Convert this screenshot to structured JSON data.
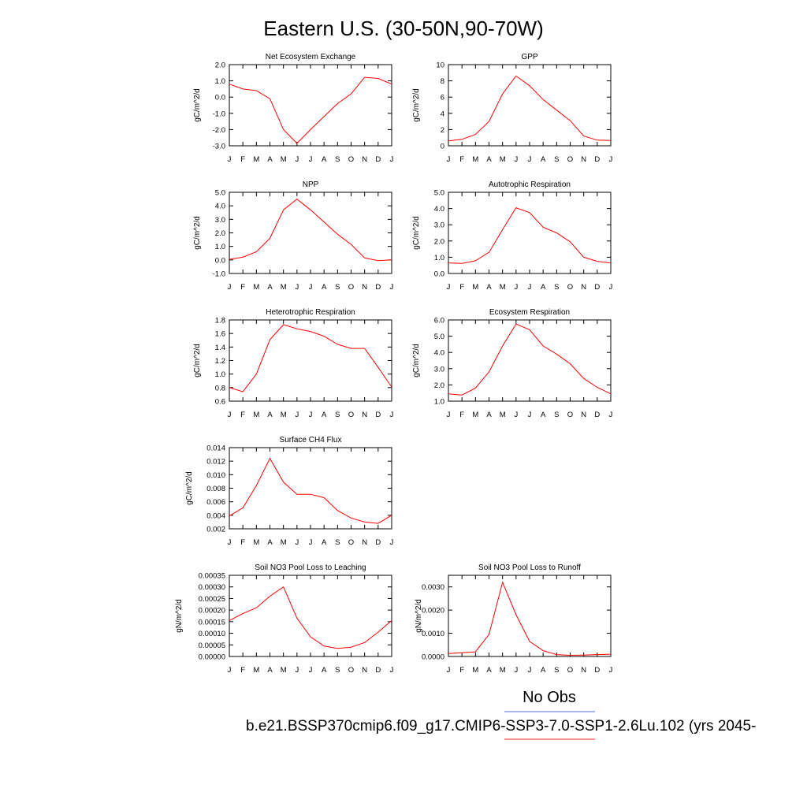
{
  "page_title": "Eastern U.S. (30-50N,90-70W)",
  "legend": {
    "obs_label": "No Obs",
    "obs_color": "#7b86e8",
    "model_label": "b.e21.BSSP370cmip6.f09_g17.CMIP6-SSP3-7.0-SSP1-2.6Lu.102 (yrs 2045-",
    "model_color": "#ff4d4d"
  },
  "line_color": "#ff0000",
  "chart_data": [
    {
      "type": "line",
      "title": "Net Ecosystem Exchange",
      "ylabel": "gC/m^2/d",
      "xlabel": "",
      "x": [
        "J",
        "F",
        "M",
        "A",
        "M",
        "J",
        "J",
        "A",
        "S",
        "O",
        "N",
        "D",
        "J"
      ],
      "ylim": [
        -3.0,
        2.0
      ],
      "yticks": [
        -3.0,
        -2.0,
        -1.0,
        0.0,
        1.0,
        2.0
      ],
      "ytick_labels": [
        "-3.0",
        "-2.0",
        "-1.0",
        "0.0",
        "1.0",
        "2.0"
      ],
      "series": [
        {
          "values": [
            0.8,
            0.5,
            0.4,
            -0.1,
            -2.0,
            -2.85,
            -2.0,
            -1.2,
            -0.4,
            0.2,
            1.22,
            1.15,
            0.8
          ]
        }
      ]
    },
    {
      "type": "line",
      "title": "GPP",
      "ylabel": "gC/m^2/d",
      "xlabel": "",
      "x": [
        "J",
        "F",
        "M",
        "A",
        "M",
        "J",
        "J",
        "A",
        "S",
        "O",
        "N",
        "D",
        "J"
      ],
      "ylim": [
        0,
        10
      ],
      "yticks": [
        0,
        2,
        4,
        6,
        8,
        10
      ],
      "ytick_labels": [
        "0",
        "2",
        "4",
        "6",
        "8",
        "10"
      ],
      "series": [
        {
          "values": [
            0.6,
            0.8,
            1.4,
            3.0,
            6.4,
            8.6,
            7.4,
            5.7,
            4.4,
            3.1,
            1.2,
            0.7,
            0.65
          ]
        }
      ]
    },
    {
      "type": "line",
      "title": "NPP",
      "ylabel": "gC/m^2/d",
      "xlabel": "",
      "x": [
        "J",
        "F",
        "M",
        "A",
        "M",
        "J",
        "J",
        "A",
        "S",
        "O",
        "N",
        "D",
        "J"
      ],
      "ylim": [
        -1.0,
        5.0
      ],
      "yticks": [
        -1.0,
        0.0,
        1.0,
        2.0,
        3.0,
        4.0,
        5.0
      ],
      "ytick_labels": [
        "-1.0",
        "0.0",
        "1.0",
        "2.0",
        "3.0",
        "4.0",
        "5.0"
      ],
      "series": [
        {
          "values": [
            0.05,
            0.2,
            0.6,
            1.6,
            3.7,
            4.5,
            3.7,
            2.8,
            1.9,
            1.15,
            0.15,
            -0.05,
            0.0
          ]
        }
      ]
    },
    {
      "type": "line",
      "title": "Autotrophic Respiration",
      "ylabel": "gC/m^2/d",
      "xlabel": "",
      "x": [
        "J",
        "F",
        "M",
        "A",
        "M",
        "J",
        "J",
        "A",
        "S",
        "O",
        "N",
        "D",
        "J"
      ],
      "ylim": [
        0.0,
        5.0
      ],
      "yticks": [
        0.0,
        1.0,
        2.0,
        3.0,
        4.0,
        5.0
      ],
      "ytick_labels": [
        "0.0",
        "1.0",
        "2.0",
        "3.0",
        "4.0",
        "5.0"
      ],
      "series": [
        {
          "values": [
            0.65,
            0.62,
            0.78,
            1.3,
            2.7,
            4.05,
            3.75,
            2.85,
            2.5,
            1.95,
            1.0,
            0.75,
            0.65
          ]
        }
      ]
    },
    {
      "type": "line",
      "title": "Heterotrophic Respiration",
      "ylabel": "gC/m^2/d",
      "xlabel": "",
      "x": [
        "J",
        "F",
        "M",
        "A",
        "M",
        "J",
        "J",
        "A",
        "S",
        "O",
        "N",
        "D",
        "J"
      ],
      "ylim": [
        0.6,
        1.8
      ],
      "yticks": [
        0.6,
        0.8,
        1.0,
        1.2,
        1.4,
        1.6,
        1.8
      ],
      "ytick_labels": [
        "0.6",
        "0.8",
        "1.0",
        "1.2",
        "1.4",
        "1.6",
        "1.8"
      ],
      "series": [
        {
          "values": [
            0.8,
            0.74,
            1.0,
            1.51,
            1.73,
            1.67,
            1.63,
            1.56,
            1.44,
            1.38,
            1.38,
            1.1,
            0.81
          ]
        }
      ]
    },
    {
      "type": "line",
      "title": "Ecosystem Respiration",
      "ylabel": "gC/m^2/d",
      "xlabel": "",
      "x": [
        "J",
        "F",
        "M",
        "A",
        "M",
        "J",
        "J",
        "A",
        "S",
        "O",
        "N",
        "D",
        "J"
      ],
      "ylim": [
        1.0,
        6.0
      ],
      "yticks": [
        1.0,
        2.0,
        3.0,
        4.0,
        5.0,
        6.0
      ],
      "ytick_labels": [
        "1.0",
        "2.0",
        "3.0",
        "4.0",
        "5.0",
        "6.0"
      ],
      "series": [
        {
          "values": [
            1.45,
            1.38,
            1.8,
            2.8,
            4.4,
            5.75,
            5.4,
            4.4,
            3.9,
            3.3,
            2.4,
            1.85,
            1.45
          ]
        }
      ]
    },
    {
      "type": "line",
      "title": "Surface CH4 Flux",
      "ylabel": "gC/m^2/d",
      "xlabel": "",
      "x": [
        "J",
        "F",
        "M",
        "A",
        "M",
        "J",
        "J",
        "A",
        "S",
        "O",
        "N",
        "D",
        "J"
      ],
      "ylim": [
        0.002,
        0.014
      ],
      "yticks": [
        0.002,
        0.004,
        0.006,
        0.008,
        0.01,
        0.012,
        0.014
      ],
      "ytick_labels": [
        "0.002",
        "0.004",
        "0.006",
        "0.008",
        "0.010",
        "0.012",
        "0.014"
      ],
      "series": [
        {
          "values": [
            0.0039,
            0.0051,
            0.0084,
            0.0124,
            0.0089,
            0.0071,
            0.0071,
            0.0066,
            0.0047,
            0.0036,
            0.003,
            0.0028,
            0.004
          ]
        }
      ]
    },
    {
      "type": "line",
      "title": "Soil NO3 Pool Loss to Leaching",
      "ylabel": "gN/m^2/d",
      "xlabel": "",
      "x": [
        "J",
        "F",
        "M",
        "A",
        "M",
        "J",
        "J",
        "A",
        "S",
        "O",
        "N",
        "D",
        "J"
      ],
      "ylim": [
        0.0,
        0.00035
      ],
      "yticks": [
        0.0,
        5e-05,
        0.0001,
        0.00015,
        0.0002,
        0.00025,
        0.0003,
        0.00035
      ],
      "ytick_labels": [
        "0.00000",
        "0.00005",
        "0.00010",
        "0.00015",
        "0.00020",
        "0.00025",
        "0.00030",
        "0.00035"
      ],
      "series": [
        {
          "values": [
            0.000155,
            0.000185,
            0.00021,
            0.00026,
            0.0003,
            0.000165,
            8.5e-05,
            4.5e-05,
            3.5e-05,
            4e-05,
            6e-05,
            0.000105,
            0.000155
          ]
        }
      ]
    },
    {
      "type": "line",
      "title": "Soil NO3 Pool Loss to Runoff",
      "ylabel": "gN/m^2/d",
      "xlabel": "",
      "x": [
        "J",
        "F",
        "M",
        "A",
        "M",
        "J",
        "J",
        "A",
        "S",
        "O",
        "N",
        "D",
        "J"
      ],
      "ylim": [
        0.0,
        0.0035
      ],
      "yticks": [
        0.0,
        0.001,
        0.002,
        0.003
      ],
      "ytick_labels": [
        "0.0000",
        "0.0010",
        "0.0020",
        "0.0030"
      ],
      "series": [
        {
          "values": [
            0.00013,
            0.00016,
            0.0002,
            0.00095,
            0.0032,
            0.0018,
            0.00065,
            0.00025,
            8e-05,
            5e-05,
            6e-05,
            8e-05,
            0.0001
          ]
        }
      ]
    }
  ]
}
